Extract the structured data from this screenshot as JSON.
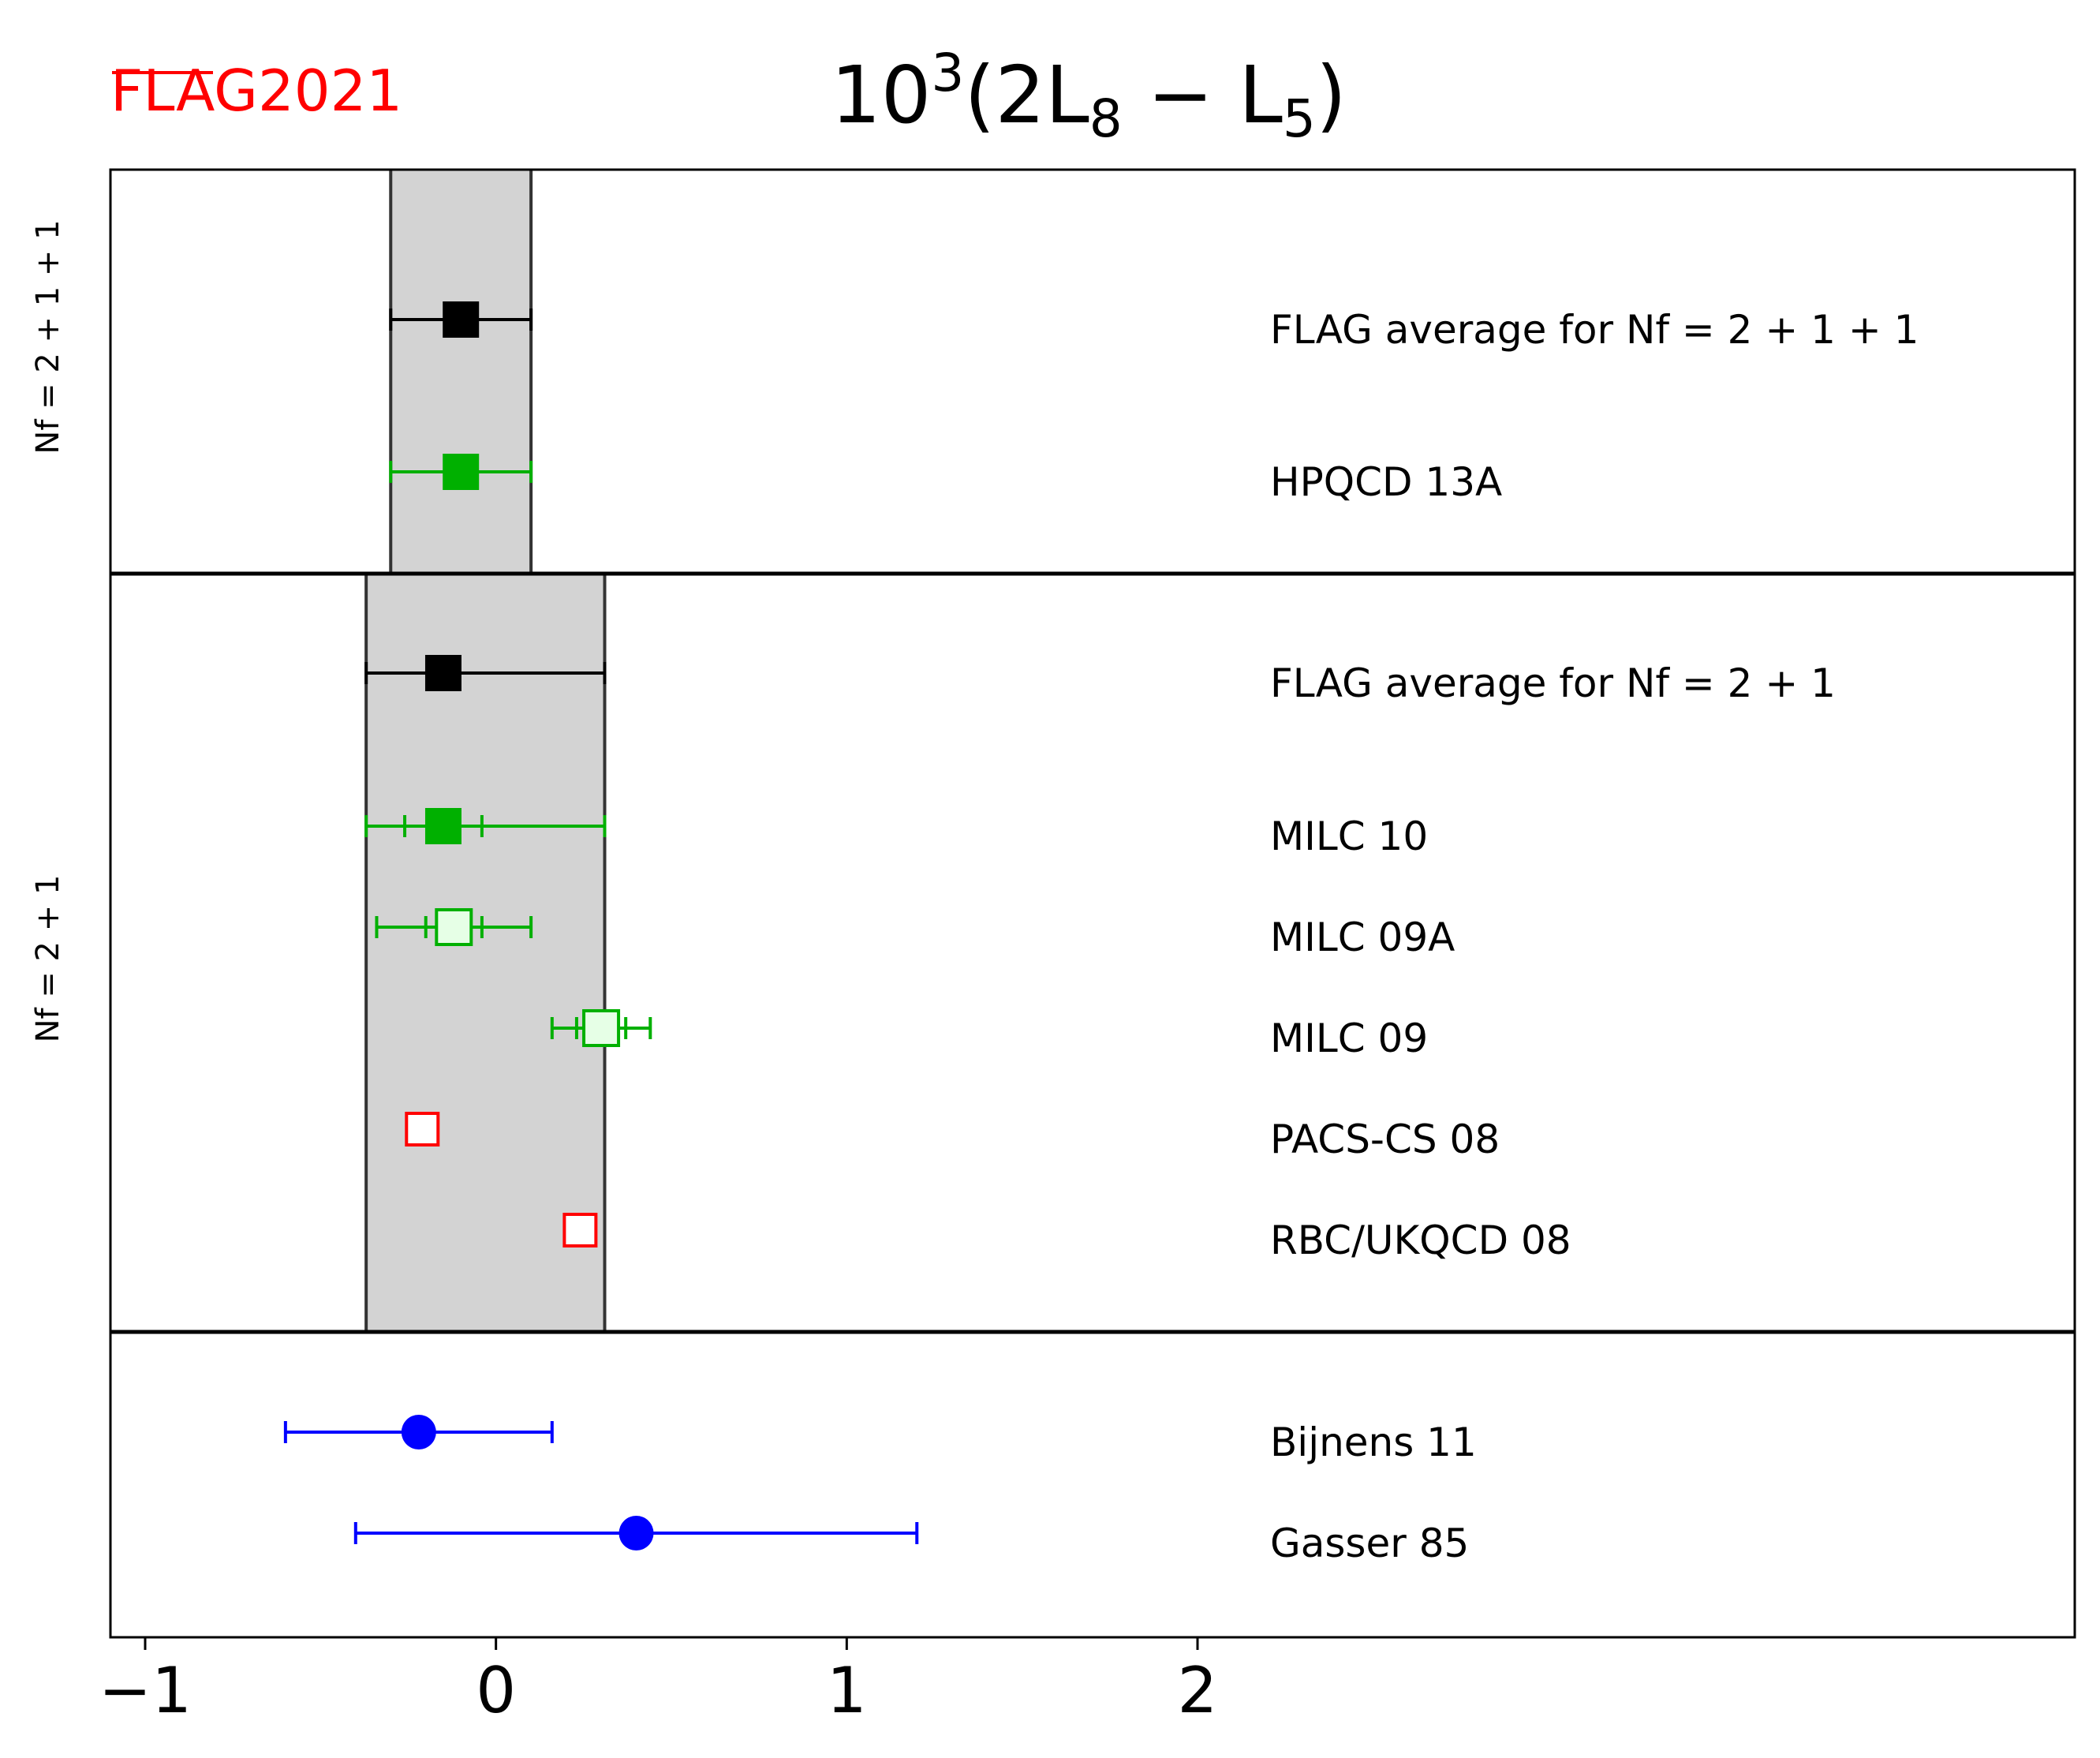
{
  "chart_data": {
    "type": "scatter",
    "title": "10³(2L₈ − L₅)",
    "logo": "FLAG2021",
    "xlabel": "",
    "ylabel": "",
    "xlim": [
      -1.1,
      4.5
    ],
    "xticks": [
      {
        "value": -1,
        "label": "−1"
      },
      {
        "value": 0,
        "label": "0"
      },
      {
        "value": 1,
        "label": "1"
      },
      {
        "value": 2,
        "label": "2"
      }
    ],
    "colors": {
      "average": "#000000",
      "nf211": "#00b000",
      "nf21_green": "#00b000",
      "nf21_red": "#ff0000",
      "pheno": "#0000ff",
      "band": "#d3d3d3",
      "logo": "#ff0000"
    },
    "panels": [
      {
        "id": "nf211",
        "label": "N_f = 2+1+1",
        "band": [
          -0.3,
          0.1
        ],
        "entries": [
          {
            "name": "FLAG average for N_f=2+1+1",
            "display": "FLAG average for Nf = 2 + 1 + 1",
            "value": -0.1,
            "err_minus": 0.2,
            "err_plus": 0.2,
            "marker": "square-filled",
            "color": "#000000"
          },
          {
            "name": "HPQCD 13A",
            "display": "HPQCD 13A",
            "value": -0.1,
            "err_minus": 0.2,
            "err_plus": 0.2,
            "marker": "square-filled",
            "color": "#00b000"
          }
        ]
      },
      {
        "id": "nf21",
        "label": "N_f = 2+1",
        "band": [
          -0.37,
          0.31
        ],
        "entries": [
          {
            "name": "FLAG average for N_f=2+1",
            "display": "FLAG average for Nf = 2 + 1",
            "value": -0.15,
            "err_minus": 0.22,
            "err_plus": 0.46,
            "marker": "square-filled",
            "color": "#000000"
          },
          {
            "name": "MILC 10",
            "display": "MILC 10",
            "value": -0.15,
            "err_minus": 0.22,
            "err_plus": 0.46,
            "stat_minus": 0.11,
            "stat_plus": 0.11,
            "marker": "square-filled",
            "color": "#00b000"
          },
          {
            "name": "MILC 09A",
            "display": "MILC 09A",
            "value": -0.12,
            "err_minus": 0.22,
            "err_plus": 0.22,
            "stat_minus": 0.08,
            "stat_plus": 0.08,
            "marker": "square-light",
            "color": "#00b000"
          },
          {
            "name": "MILC 09",
            "display": "MILC 09",
            "value": 0.3,
            "err_minus": 0.14,
            "err_plus": 0.14,
            "stat_minus": 0.07,
            "stat_plus": 0.07,
            "marker": "square-light",
            "color": "#00b000"
          },
          {
            "name": "PACS-CS 08",
            "display": "PACS-CS 08",
            "value": -0.21,
            "marker": "square-open",
            "color": "#ff0000"
          },
          {
            "name": "RBC/UKQCD 08",
            "display": "RBC/UKQCD 08",
            "value": 0.24,
            "marker": "square-open",
            "color": "#ff0000"
          }
        ]
      },
      {
        "id": "pheno",
        "label": "",
        "entries": [
          {
            "name": "Bijnens 11",
            "display": "Bijnens 11",
            "value": -0.22,
            "err_minus": 0.38,
            "err_plus": 0.38,
            "marker": "circle",
            "color": "#0000ff"
          },
          {
            "name": "Gasser 85",
            "display": "Gasser 85",
            "value": 0.4,
            "err_minus": 0.8,
            "err_plus": 0.8,
            "marker": "circle",
            "color": "#0000ff"
          }
        ]
      }
    ]
  }
}
